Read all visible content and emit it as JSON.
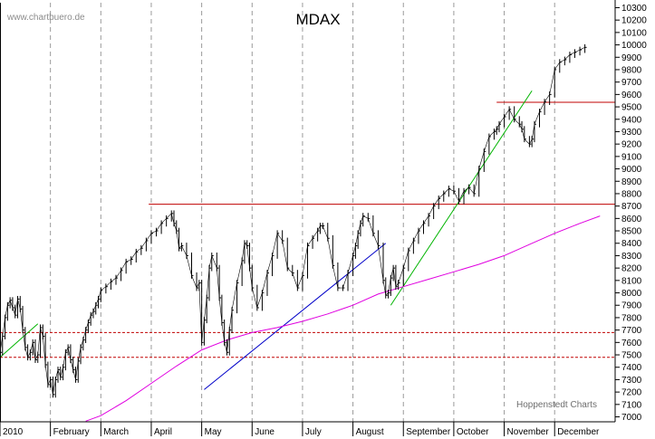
{
  "watermark": "www.chartbuero.de",
  "credit": "Hoppenstedt Charts",
  "colors": {
    "price": "#000000",
    "grid": "#9a9a9a",
    "support": "#c00000",
    "moving_average": "#e000e0",
    "trend_blue": "#0000c8",
    "trend_green": "#00b400"
  },
  "chart_data": {
    "type": "line",
    "title": "MDAX",
    "y_axis_side": "right",
    "ylim": [
      6960,
      10340
    ],
    "yticks": [
      7000,
      7100,
      7200,
      7300,
      7400,
      7500,
      7600,
      7700,
      7800,
      7900,
      8000,
      8100,
      8200,
      8300,
      8400,
      8500,
      8600,
      8700,
      8800,
      8900,
      9000,
      9100,
      9200,
      9300,
      9400,
      9500,
      9600,
      9700,
      9800,
      9900,
      10000,
      10100,
      10200,
      10300
    ],
    "xlim_months": [
      0,
      12.2
    ],
    "months": [
      "2010",
      "February",
      "March",
      "April",
      "May",
      "June",
      "July",
      "August",
      "September",
      "October",
      "November",
      "December"
    ],
    "grid": "dashed vertical lines at month starts",
    "series": [
      {
        "x": [
          0.0,
          0.05,
          0.1,
          0.15,
          0.2,
          0.25,
          0.3,
          0.35,
          0.4,
          0.45,
          0.5,
          0.55,
          0.6,
          0.65,
          0.7,
          0.75,
          0.8,
          0.85,
          0.9,
          0.95,
          1.0,
          1.05,
          1.1,
          1.15,
          1.2,
          1.25,
          1.3,
          1.35,
          1.4,
          1.45,
          1.5,
          1.55,
          1.6,
          1.65,
          1.7,
          1.75,
          1.8,
          1.85,
          1.9,
          1.95,
          2.0,
          2.1,
          2.2,
          2.3,
          2.4,
          2.5,
          2.6,
          2.7,
          2.8,
          2.9,
          3.0,
          3.1,
          3.2,
          3.3,
          3.4,
          3.45,
          3.5,
          3.55,
          3.6,
          3.7,
          3.8,
          3.9,
          3.95,
          4.0,
          4.05,
          4.1,
          4.15,
          4.2,
          4.3,
          4.35,
          4.4,
          4.45,
          4.5,
          4.55,
          4.6,
          4.7,
          4.8,
          4.85,
          4.9,
          4.95,
          5.0,
          5.1,
          5.2,
          5.3,
          5.4,
          5.5,
          5.6,
          5.7,
          5.8,
          5.9,
          6.0,
          6.1,
          6.2,
          6.3,
          6.35,
          6.4,
          6.5,
          6.6,
          6.7,
          6.8,
          6.9,
          7.0,
          7.05,
          7.1,
          7.15,
          7.2,
          7.3,
          7.4,
          7.5,
          7.6,
          7.65,
          7.7,
          7.75,
          7.8,
          7.85,
          7.9,
          8.0,
          8.1,
          8.2,
          8.3,
          8.4,
          8.5,
          8.6,
          8.7,
          8.8,
          8.9,
          9.0,
          9.1,
          9.2,
          9.3,
          9.4,
          9.5,
          9.6,
          9.7,
          9.8,
          9.85,
          9.9,
          10.0,
          10.1,
          10.2,
          10.3,
          10.35,
          10.4,
          10.5,
          10.55,
          10.6,
          10.7,
          10.8,
          10.9,
          11.0,
          11.1,
          11.2,
          11.3,
          11.4,
          11.5,
          11.6
        ],
        "values": [
          7520,
          7650,
          7800,
          7900,
          7940,
          7880,
          7820,
          7950,
          7870,
          7700,
          7560,
          7480,
          7520,
          7600,
          7460,
          7500,
          7720,
          7650,
          7420,
          7260,
          7300,
          7180,
          7300,
          7380,
          7320,
          7400,
          7520,
          7560,
          7460,
          7380,
          7300,
          7450,
          7560,
          7620,
          7700,
          7760,
          7820,
          7850,
          7900,
          7950,
          8020,
          8050,
          8090,
          8120,
          8180,
          8250,
          8270,
          8330,
          8360,
          8420,
          8480,
          8500,
          8560,
          8600,
          8640,
          8560,
          8500,
          8360,
          8380,
          8300,
          8140,
          8040,
          8080,
          7600,
          7780,
          7960,
          8200,
          8300,
          8200,
          7960,
          7760,
          7600,
          7520,
          7700,
          7860,
          8080,
          8260,
          8400,
          8380,
          8200,
          8040,
          7880,
          8000,
          8160,
          8300,
          8480,
          8420,
          8200,
          8160,
          8040,
          8140,
          8380,
          8440,
          8500,
          8540,
          8540,
          8440,
          8220,
          8040,
          8040,
          8160,
          8300,
          8380,
          8480,
          8560,
          8620,
          8600,
          8480,
          8380,
          8100,
          7980,
          8000,
          8120,
          8200,
          8050,
          8080,
          8200,
          8340,
          8420,
          8500,
          8560,
          8620,
          8700,
          8760,
          8800,
          8840,
          8820,
          8740,
          8820,
          8850,
          8800,
          9000,
          9140,
          9260,
          9300,
          9320,
          9360,
          9420,
          9480,
          9400,
          9360,
          9320,
          9240,
          9200,
          9240,
          9360,
          9460,
          9540,
          9600,
          9800,
          9860,
          9880,
          9920,
          9940,
          9960,
          9980
        ]
      },
      {
        "name": "",
        "x": [
          1.7,
          2.0,
          2.5,
          3.0,
          3.5,
          4.0,
          4.5,
          5.0,
          5.5,
          6.0,
          6.5,
          7.0,
          7.5,
          8.0,
          8.5,
          9.0,
          9.5,
          10.0,
          10.5,
          11.0,
          11.5,
          11.9
        ],
        "values": [
          6965,
          7010,
          7130,
          7270,
          7410,
          7540,
          7620,
          7680,
          7720,
          7770,
          7830,
          7900,
          7990,
          8050,
          8110,
          8170,
          8230,
          8300,
          8390,
          8480,
          8560,
          8620
        ]
      }
    ],
    "lines": [
      {
        "kind": "horizontal",
        "y": 8715,
        "from_x": 2.95,
        "to_x": 12.2,
        "style": "solid"
      },
      {
        "kind": "horizontal",
        "y": 9537,
        "from_x": 9.85,
        "to_x": 12.2,
        "style": "solid"
      },
      {
        "kind": "horizontal",
        "y": 7680,
        "from_x": 0.0,
        "to_x": 12.2,
        "style": "dashed"
      },
      {
        "kind": "horizontal",
        "y": 7480,
        "from_x": 0.0,
        "to_x": 12.2,
        "style": "dashed"
      },
      {
        "kind": "trend",
        "from": [
          4.05,
          7220
        ],
        "to": [
          7.65,
          8400
        ],
        "color": "trend_blue"
      },
      {
        "kind": "trend",
        "from": [
          0.0,
          7480
        ],
        "to": [
          0.75,
          7750
        ],
        "color": "trend_green"
      },
      {
        "kind": "trend",
        "from": [
          7.75,
          7900
        ],
        "to": [
          10.55,
          9630
        ],
        "color": "trend_green"
      }
    ]
  }
}
